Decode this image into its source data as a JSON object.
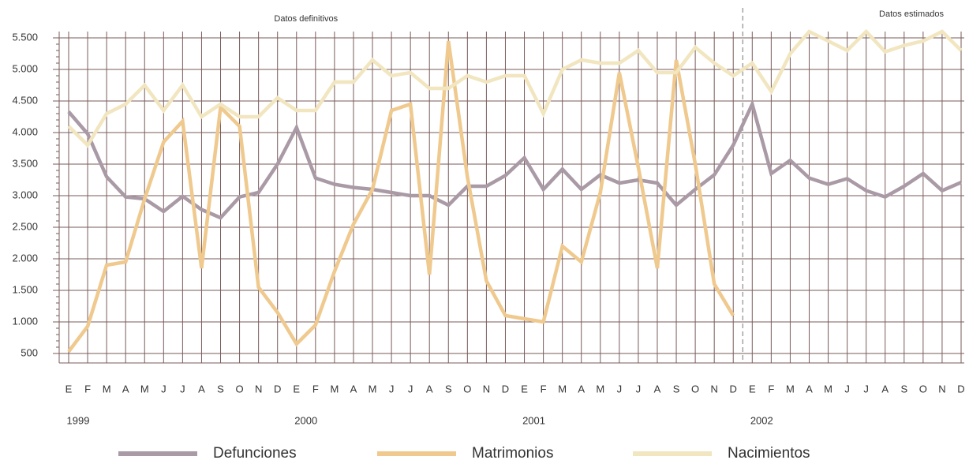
{
  "chart_data": {
    "type": "line",
    "region_labels": [
      "Datos definitivos",
      "Datos estimados"
    ],
    "year_labels": [
      "1999",
      "2000",
      "2001",
      "2002"
    ],
    "categories": [
      "E",
      "F",
      "M",
      "A",
      "M",
      "J",
      "J",
      "A",
      "S",
      "O",
      "N",
      "D",
      "E",
      "F",
      "M",
      "A",
      "M",
      "J",
      "J",
      "A",
      "S",
      "O",
      "N",
      "D",
      "E",
      "F",
      "M",
      "A",
      "M",
      "J",
      "J",
      "A",
      "S",
      "O",
      "N",
      "D",
      "E",
      "F",
      "M",
      "A",
      "M",
      "J",
      "J",
      "A",
      "S",
      "O",
      "N",
      "D"
    ],
    "ylim": [
      350,
      5600
    ],
    "yticks": [
      500,
      {
        "value": 1000,
        "label": "1.000"
      },
      {
        "value": 1500,
        "label": "1.500"
      },
      {
        "value": 2000,
        "label": "2.000"
      },
      {
        "value": 2500,
        "label": "2.500"
      },
      {
        "value": 3000,
        "label": "3.000"
      },
      {
        "value": 3500,
        "label": "3.500"
      },
      {
        "value": 4000,
        "label": "4.000"
      },
      {
        "value": 4500,
        "label": "4.500"
      },
      {
        "value": 5000,
        "label": "5.000"
      },
      {
        "value": 5500,
        "label": "5.500"
      }
    ],
    "grid": true,
    "series": [
      {
        "name": "Defunciones",
        "color": "#a99aa6",
        "values": [
          4330,
          3980,
          3300,
          2980,
          2950,
          2750,
          2990,
          2780,
          2650,
          2980,
          3050,
          3500,
          4080,
          3280,
          3180,
          3130,
          3100,
          3050,
          3000,
          3000,
          2850,
          3150,
          3150,
          3320,
          3600,
          3100,
          3420,
          3100,
          3330,
          3200,
          3250,
          3200,
          2850,
          3100,
          3330,
          3800,
          4450,
          3350,
          3560,
          3280,
          3180,
          3270,
          3080,
          2980,
          3150,
          3350,
          3080,
          3210
        ]
      },
      {
        "name": "Matrimonios",
        "color": "#efc98e",
        "values": [
          530,
          930,
          1900,
          1950,
          2950,
          3850,
          4180,
          1850,
          4400,
          4100,
          1550,
          1150,
          650,
          950,
          1800,
          2550,
          3100,
          4350,
          4450,
          1750,
          5450,
          3300,
          1650,
          1100,
          1050,
          1000,
          2200,
          1950,
          3050,
          4950,
          3450,
          1850,
          5150,
          3500,
          1600,
          1100,
          null,
          null,
          null,
          null,
          null,
          null,
          null,
          null,
          null,
          null,
          null,
          null
        ]
      },
      {
        "name": "Nacimientos",
        "color": "#f1e6c0",
        "values": [
          4100,
          3800,
          4300,
          4450,
          4750,
          4350,
          4750,
          4250,
          4450,
          4250,
          4250,
          4550,
          4350,
          4350,
          4800,
          4800,
          5150,
          4900,
          4950,
          4700,
          4700,
          4900,
          4800,
          4900,
          4900,
          4300,
          5000,
          5150,
          5100,
          5100,
          5300,
          4950,
          4950,
          5350,
          5100,
          4900,
          5100,
          4650,
          5250,
          5600,
          5450,
          5300,
          5600,
          5280,
          5380,
          5450,
          5600,
          5300
        ]
      }
    ]
  }
}
